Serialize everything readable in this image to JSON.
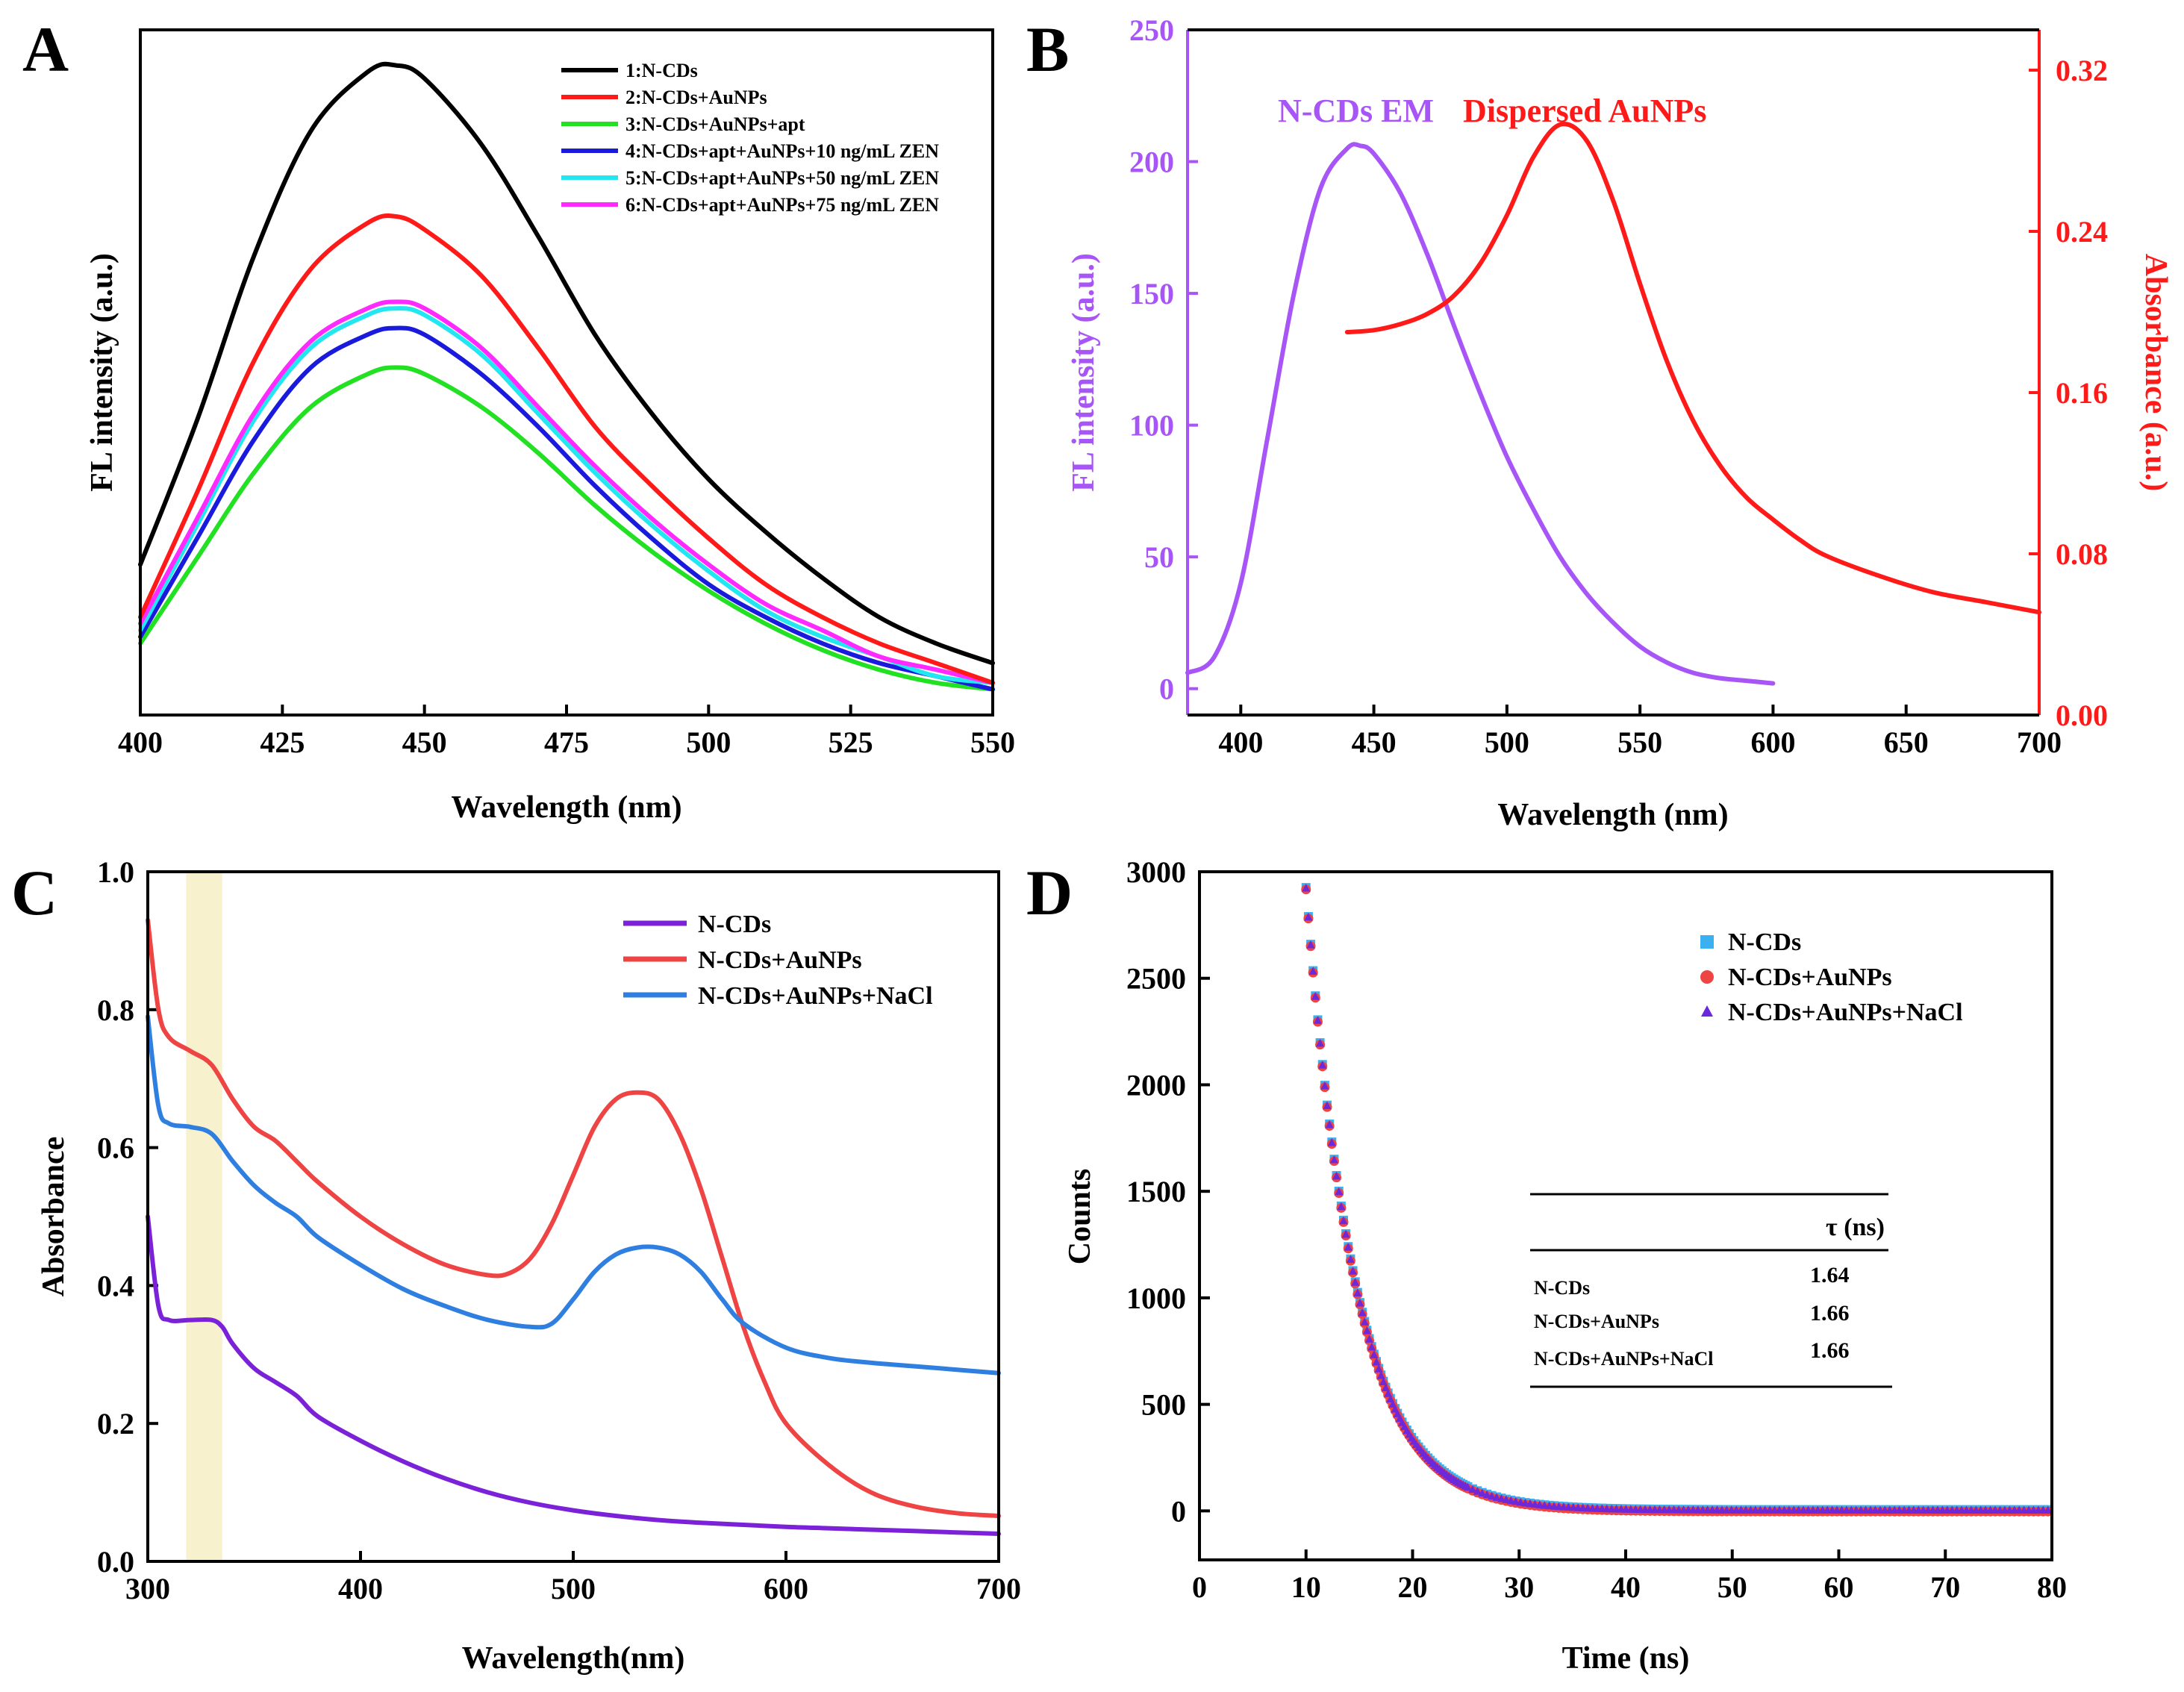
{
  "panels": {
    "A": "A",
    "B": "B",
    "C": "C",
    "D": "D"
  },
  "chart_data": [
    {
      "panel": "A",
      "type": "line",
      "title": "",
      "xlabel": "Wavelength (nm)",
      "ylabel": "FL intensity (a.u.)",
      "xlim": [
        400,
        550
      ],
      "ylim": [
        0,
        100
      ],
      "xticks": [
        400,
        425,
        450,
        475,
        500,
        525,
        550
      ],
      "yticks_shown": false,
      "legend": "top-right",
      "x": [
        400,
        410,
        420,
        430,
        440,
        445,
        450,
        460,
        470,
        480,
        490,
        500,
        510,
        520,
        530,
        540,
        550
      ],
      "series": [
        {
          "name": "1:N-CDs",
          "color": "#000000",
          "values": [
            22,
            44,
            69,
            88,
            97,
            98,
            96,
            86,
            72,
            57,
            45,
            35,
            27,
            20,
            14,
            10,
            7
          ]
        },
        {
          "name": "2:N-CDs+AuNPs",
          "color": "#ff1a1a",
          "values": [
            14,
            33,
            53,
            67,
            74,
            75,
            73,
            66,
            55,
            43,
            34,
            26,
            19,
            14,
            10,
            7,
            4
          ]
        },
        {
          "name": "3:N-CDs+AuNPs+apt",
          "color": "#22e022",
          "values": [
            10,
            23,
            36,
            46,
            51,
            52,
            51,
            46,
            39,
            31,
            24,
            18,
            13,
            9,
            6,
            4,
            3
          ]
        },
        {
          "name": "4:N-CDs+apt+AuNPs+10 ng/mL ZEN",
          "color": "#1a1adc",
          "values": [
            11,
            26,
            41,
            52,
            57,
            58,
            57,
            51,
            43,
            34,
            26,
            19,
            14,
            10,
            7,
            5,
            3
          ]
        },
        {
          "name": "5:N-CDs+apt+AuNPs+50 ng/mL ZEN",
          "color": "#22e6f0",
          "values": [
            12,
            28,
            44,
            55,
            60,
            61,
            60,
            54,
            45,
            36,
            28,
            21,
            15,
            11,
            8,
            5,
            4
          ]
        },
        {
          "name": "6:N-CDs+apt+AuNPs+75 ng/mL ZEN",
          "color": "#ff2aff",
          "values": [
            13,
            29,
            45,
            56,
            61,
            62,
            61,
            55,
            46,
            37,
            29,
            22,
            16,
            12,
            8,
            6,
            4
          ]
        }
      ]
    },
    {
      "panel": "B",
      "type": "line",
      "title": "",
      "xlabel": "Wavelength (nm)",
      "ylabel": "FL intensity (a.u.)",
      "y2label": "Absorbance (a.u.)",
      "xlim": [
        380,
        700
      ],
      "ylim": [
        -10,
        250
      ],
      "y2lim": [
        0.0,
        0.34
      ],
      "xticks": [
        400,
        450,
        500,
        550,
        600,
        650,
        700
      ],
      "yticks": [
        0,
        50,
        100,
        150,
        200,
        250
      ],
      "y2ticks": [
        "0.00",
        "0.08",
        "0.16",
        "0.24",
        "0.32"
      ],
      "annotations": [
        "N-CDs EM",
        "Dispersed AuNPs"
      ],
      "series": [
        {
          "name": "N-CDs EM",
          "axis": "left",
          "color": "#a855f7",
          "x": [
            380,
            390,
            400,
            410,
            420,
            430,
            440,
            445,
            450,
            460,
            470,
            480,
            490,
            500,
            510,
            520,
            530,
            540,
            550,
            560,
            570,
            580,
            590,
            600
          ],
          "values": [
            6,
            12,
            40,
            95,
            150,
            190,
            205,
            206,
            203,
            188,
            165,
            138,
            112,
            88,
            68,
            50,
            36,
            25,
            16,
            10,
            6,
            4,
            3,
            2
          ]
        },
        {
          "name": "Dispersed AuNPs",
          "axis": "right",
          "color": "#ff1a1a",
          "x": [
            440,
            450,
            460,
            470,
            480,
            490,
            500,
            510,
            520,
            530,
            540,
            550,
            560,
            570,
            580,
            590,
            600,
            610,
            620,
            640,
            660,
            680,
            700
          ],
          "values": [
            0.19,
            0.191,
            0.194,
            0.199,
            0.208,
            0.224,
            0.248,
            0.277,
            0.293,
            0.285,
            0.255,
            0.214,
            0.176,
            0.146,
            0.124,
            0.108,
            0.097,
            0.087,
            0.079,
            0.069,
            0.061,
            0.056,
            0.051
          ]
        }
      ]
    },
    {
      "panel": "C",
      "type": "line",
      "title": "",
      "xlabel": "Wavelength(nm)",
      "ylabel": "Absorbance",
      "xlim": [
        300,
        700
      ],
      "ylim": [
        0.0,
        1.0
      ],
      "xticks": [
        300,
        400,
        500,
        600,
        700
      ],
      "yticks": [
        "0.0",
        "0.2",
        "0.4",
        "0.6",
        "0.8",
        "1.0"
      ],
      "highlight_band": [
        318,
        335
      ],
      "legend": "top-right",
      "series": [
        {
          "name": "N-CDs",
          "color": "#7b22d8",
          "x": [
            300,
            305,
            310,
            320,
            330,
            335,
            340,
            350,
            360,
            370,
            380,
            400,
            420,
            440,
            460,
            480,
            500,
            520,
            540,
            560,
            580,
            600,
            620,
            640,
            660,
            680,
            700
          ],
          "values": [
            0.5,
            0.37,
            0.35,
            0.35,
            0.35,
            0.34,
            0.315,
            0.28,
            0.26,
            0.24,
            0.21,
            0.175,
            0.145,
            0.12,
            0.1,
            0.085,
            0.074,
            0.066,
            0.06,
            0.056,
            0.053,
            0.05,
            0.048,
            0.046,
            0.044,
            0.042,
            0.04
          ]
        },
        {
          "name": "N-CDs+AuNPs",
          "color": "#ef4444",
          "x": [
            300,
            305,
            310,
            320,
            330,
            340,
            350,
            360,
            370,
            380,
            400,
            420,
            440,
            460,
            470,
            480,
            490,
            500,
            510,
            520,
            530,
            540,
            550,
            560,
            570,
            580,
            590,
            600,
            620,
            640,
            660,
            680,
            700
          ],
          "values": [
            0.93,
            0.8,
            0.76,
            0.74,
            0.72,
            0.67,
            0.63,
            0.61,
            0.58,
            0.55,
            0.5,
            0.46,
            0.43,
            0.415,
            0.418,
            0.44,
            0.49,
            0.56,
            0.63,
            0.67,
            0.68,
            0.67,
            0.62,
            0.54,
            0.44,
            0.34,
            0.26,
            0.2,
            0.14,
            0.1,
            0.08,
            0.07,
            0.066
          ]
        },
        {
          "name": "N-CDs+AuNPs+NaCl",
          "color": "#2f7fe0",
          "x": [
            300,
            305,
            310,
            320,
            330,
            340,
            350,
            360,
            370,
            380,
            400,
            420,
            440,
            460,
            480,
            490,
            500,
            510,
            520,
            530,
            540,
            550,
            560,
            570,
            580,
            600,
            620,
            640,
            660,
            680,
            700
          ],
          "values": [
            0.79,
            0.66,
            0.635,
            0.63,
            0.62,
            0.58,
            0.545,
            0.52,
            0.5,
            0.47,
            0.43,
            0.395,
            0.37,
            0.35,
            0.34,
            0.345,
            0.38,
            0.42,
            0.445,
            0.455,
            0.455,
            0.445,
            0.42,
            0.38,
            0.345,
            0.31,
            0.295,
            0.288,
            0.283,
            0.278,
            0.273
          ]
        }
      ]
    },
    {
      "panel": "D",
      "type": "scatter",
      "title": "",
      "xlabel": "Time (ns)",
      "ylabel": "Counts",
      "xlim": [
        0,
        80
      ],
      "ylim": [
        -230,
        3000
      ],
      "xticks": [
        0,
        10,
        20,
        30,
        40,
        50,
        60,
        70,
        80
      ],
      "yticks": [
        0,
        500,
        1000,
        1500,
        2000,
        2500,
        3000
      ],
      "legend": "top-right",
      "decay": {
        "t0": 10,
        "amplitude": 2920,
        "tau_display": 4.6,
        "end_x": 80
      },
      "series": [
        {
          "name": "N-CDs",
          "marker": "square",
          "color": "#3ab0f0",
          "tau": 1.64
        },
        {
          "name": "N-CDs+AuNPs",
          "marker": "circle",
          "color": "#ef4444",
          "tau": 1.66
        },
        {
          "name": "N-CDs+AuNPs+NaCl",
          "marker": "triangle",
          "color": "#6d28d9",
          "tau": 1.66
        }
      ],
      "table": {
        "header": "τ (ns)",
        "rows": [
          {
            "label": "N-CDs",
            "value": "1.64"
          },
          {
            "label": "N-CDs+AuNPs",
            "value": "1.66"
          },
          {
            "label": "N-CDs+AuNPs+NaCl",
            "value": "1.66"
          }
        ]
      }
    }
  ]
}
